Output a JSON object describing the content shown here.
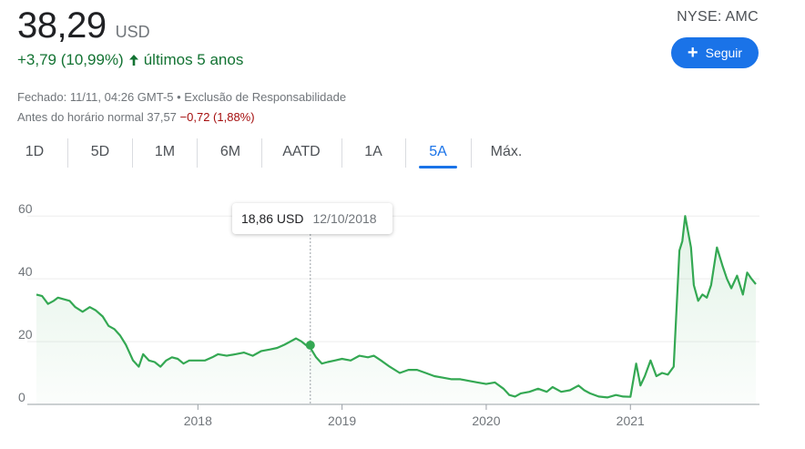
{
  "quote": {
    "price": "38,29",
    "currency": "USD",
    "change": "+3,79 (10,99%)",
    "period": "últimos 5 anos",
    "exchange": "NYSE: AMC"
  },
  "meta": {
    "closed": "Fechado: 11/11, 04:26 GMT-5 • Exclusão de Responsabilidade",
    "premarket_label": "Antes do horário normal",
    "premarket_price": "37,57",
    "premarket_change": "−0,72 (1,88%)"
  },
  "follow_button": {
    "label": "Seguir",
    "icon": "plus-icon"
  },
  "tabs": [
    {
      "label": "1D"
    },
    {
      "label": "5D"
    },
    {
      "label": "1M"
    },
    {
      "label": "6M"
    },
    {
      "label": "AATD"
    },
    {
      "label": "1A"
    },
    {
      "label": "5A",
      "active": true
    },
    {
      "label": "Máx."
    }
  ],
  "tooltip": {
    "price": "18,86 USD",
    "date": "12/10/2018"
  },
  "colors": {
    "line": "#34a853",
    "accent": "#1a73e8",
    "positive": "#137333",
    "negative": "#a50e0e"
  },
  "chart_data": {
    "type": "area",
    "y_ticks": [
      "0",
      "20",
      "40",
      "60"
    ],
    "ylim": [
      0,
      65
    ],
    "x_ticks": [
      "2018",
      "2019",
      "2020",
      "2021"
    ],
    "x_tick_values": [
      2018.0,
      2019.0,
      2020.0,
      2021.0
    ],
    "xlim": [
      2016.88,
      2021.87
    ],
    "highlight": {
      "x": 2018.78,
      "y": 18.86
    },
    "series": [
      {
        "x": [
          2016.88,
          2016.92,
          2016.96,
          2017.0,
          2017.03,
          2017.07,
          2017.11,
          2017.15,
          2017.2,
          2017.25,
          2017.29,
          2017.34,
          2017.38,
          2017.42,
          2017.46,
          2017.5,
          2017.55,
          2017.59,
          2017.62,
          2017.66,
          2017.7,
          2017.74,
          2017.78,
          2017.82,
          2017.86,
          2017.9,
          2017.94,
          2018.0,
          2018.05,
          2018.1,
          2018.14,
          2018.2,
          2018.26,
          2018.32,
          2018.38,
          2018.44,
          2018.5,
          2018.55,
          2018.6,
          2018.64,
          2018.68,
          2018.72,
          2018.75,
          2018.78,
          2018.82,
          2018.86,
          2018.9,
          2018.95,
          2019.0,
          2019.06,
          2019.12,
          2019.18,
          2019.22,
          2019.27,
          2019.33,
          2019.4,
          2019.46,
          2019.52,
          2019.58,
          2019.64,
          2019.7,
          2019.76,
          2019.82,
          2019.88,
          2019.94,
          2020.0,
          2020.06,
          2020.12,
          2020.16,
          2020.2,
          2020.24,
          2020.3,
          2020.36,
          2020.42,
          2020.46,
          2020.52,
          2020.58,
          2020.64,
          2020.68,
          2020.72,
          2020.78,
          2020.84,
          2020.9,
          2020.95,
          2021.0,
          2021.04,
          2021.07,
          2021.1,
          2021.14,
          2021.18,
          2021.22,
          2021.26,
          2021.3,
          2021.34,
          2021.36,
          2021.38,
          2021.4,
          2021.42,
          2021.44,
          2021.47,
          2021.5,
          2021.53,
          2021.56,
          2021.6,
          2021.64,
          2021.67,
          2021.7,
          2021.74,
          2021.78,
          2021.81,
          2021.84,
          2021.87
        ],
        "y": [
          35,
          34.5,
          32,
          33,
          34,
          33.5,
          33,
          31,
          29.5,
          31,
          30,
          28,
          25,
          24,
          22,
          19,
          14,
          12,
          16,
          14,
          13.5,
          12,
          14,
          15,
          14.5,
          13,
          14,
          14,
          14,
          15,
          16,
          15.5,
          16,
          16.5,
          15.5,
          17,
          17.5,
          18,
          19,
          20,
          21,
          20,
          18.86,
          18,
          15,
          13,
          13.5,
          14,
          14.5,
          14,
          15.5,
          15,
          15.5,
          14,
          12,
          10,
          11,
          11,
          10,
          9,
          8.5,
          8,
          8,
          7.5,
          7,
          6.5,
          7,
          5,
          3,
          2.5,
          3.5,
          4,
          5,
          4,
          5.5,
          4,
          4.5,
          6,
          4.5,
          3.5,
          2.5,
          2.2,
          3,
          2.5,
          2.4,
          13,
          6,
          9,
          14,
          9,
          10,
          9.5,
          12,
          49,
          52,
          60,
          55,
          50,
          38,
          33,
          35,
          34,
          38,
          50,
          44,
          40,
          37,
          41,
          35,
          42,
          40,
          38.3
        ]
      }
    ]
  }
}
